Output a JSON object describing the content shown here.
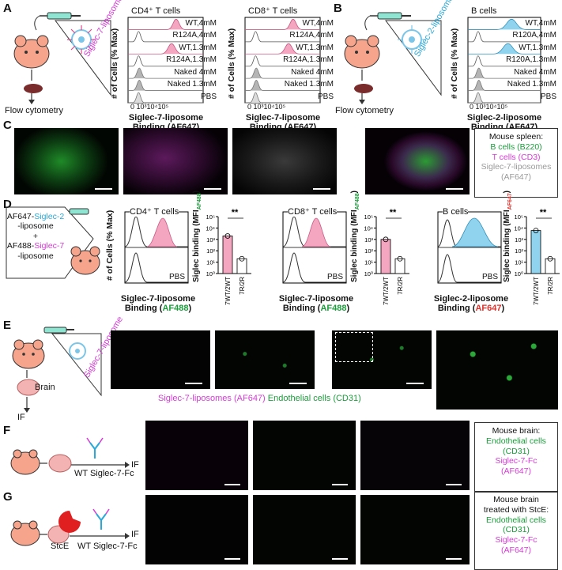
{
  "panels": {
    "A": {
      "letter": "A",
      "liposome_label": "Siglec-7-liposome",
      "arrow_label": "Flow cytometry",
      "plots": [
        {
          "title": "CD4⁺ T cells"
        },
        {
          "title": "CD8⁺ T cells"
        }
      ],
      "row_labels": [
        "WT,4mM",
        "R124A,4mM",
        "WT,1.3mM",
        "R124A,1.3mM",
        "Naked 4mM",
        "Naked 1.3mM",
        "PBS"
      ],
      "xaxis_ticks": [
        "0",
        "10³",
        "10⁴",
        "10⁵"
      ],
      "ylabel": "# of Cells (% Max)",
      "xlabel_line1": "Siglec-7-liposome",
      "xlabel_line2": "Binding (AF647)"
    },
    "B": {
      "letter": "B",
      "liposome_label": "Siglec-2-liposome",
      "arrow_label": "Flow cytometry",
      "plot_title": "B cells",
      "row_labels": [
        "WT,4mM",
        "R120A,4mM",
        "WT,1.3mM",
        "R120A,1.3mM",
        "Naked 4mM",
        "Naked 1.3mM",
        "PBS"
      ],
      "xaxis_ticks": [
        "0",
        "10³",
        "10⁴",
        "10⁵"
      ],
      "ylabel": "# of Cells (% Max)",
      "xlabel_line1": "Siglec-2-liposome",
      "xlabel_line2": "Binding (AF647)"
    },
    "C": {
      "letter": "C",
      "legend": [
        "Mouse spleen:",
        "B cells (B220)",
        "T cells (CD3)",
        "Siglec-7-liposomes",
        "(AF647)"
      ]
    },
    "D": {
      "letter": "D",
      "injection_lines": [
        "AF647-",
        "Siglec-2",
        "-liposome",
        "+",
        "AF488-",
        "Siglec-7",
        "-liposome"
      ],
      "hist1": {
        "title": "CD4⁺ T cells",
        "pbs": "PBS",
        "xlabel_line1": "Siglec-7-liposome",
        "xlabel_line2_prefix": "Binding (",
        "xlabel_line2_fluor": "AF488",
        "xlabel_line2_suffix": ")"
      },
      "hist2": {
        "title": "CD8⁺ T cells",
        "pbs": "PBS",
        "xlabel_line1": "Siglec-7-liposome",
        "xlabel_line2_prefix": "Binding (",
        "xlabel_line2_fluor": "AF488",
        "xlabel_line2_suffix": ")"
      },
      "hist3": {
        "title": "B cells",
        "pbs": "PBS",
        "xlabel_line1": "Siglec-2-liposome",
        "xlabel_line2_prefix": "Binding (",
        "xlabel_line2_fluor": "AF647",
        "xlabel_line2_suffix": ")"
      },
      "hist_ylabel": "# of Cells (% Max)",
      "bar_ylabel": "Siglec binding (MFI",
      "bar1_sub": "AF488",
      "bar3_sub": "AF647",
      "bar_categories": [
        "7WT/2WT",
        "7R/2R"
      ],
      "significance": "**",
      "bar_ticks": [
        "10⁵",
        "10⁴",
        "10³",
        "10²",
        "10¹",
        "10⁰"
      ]
    },
    "E": {
      "letter": "E",
      "liposome_label": "Siglec-7-liposome",
      "organ_label": "Brain",
      "assay_label": "IF",
      "caption_magenta": "Siglec-7-liposomes (AF647)",
      "caption_green": "Endothelial cells (CD31)"
    },
    "F": {
      "letter": "F",
      "reagent_label": "WT Siglec-7-Fc",
      "assay_label": "IF",
      "legend": [
        "Mouse brain:",
        "Endothelial cells",
        "(CD31)",
        "Siglec-7-Fc",
        "(AF647)"
      ]
    },
    "G": {
      "letter": "G",
      "enzyme_label": "StcE",
      "reagent_label": "WT Siglec-7-Fc",
      "assay_label": "IF",
      "legend": [
        "Mouse brain",
        "treated with StcE:",
        "Endothelial cells",
        "(CD31)",
        "Siglec-7-Fc",
        "(AF647)"
      ]
    }
  },
  "colors": {
    "pink": "#f4a6c0",
    "blue": "#8fd3ee",
    "gray_fill": "#b5b5b5",
    "green": "#1a9e3a",
    "magenta": "#d63bd6",
    "cyan": "#2aa8d8",
    "red": "#e0312b",
    "mouse": "#f7a48c"
  },
  "chart_data": [
    {
      "type": "bar",
      "title": "CD4⁺ T cells",
      "categories": [
        "7WT/2WT",
        "7R/2R"
      ],
      "values": [
        2000,
        20
      ],
      "log_scale": true,
      "ylabel": "Siglec binding (MFI AF488)"
    },
    {
      "type": "bar",
      "title": "CD8⁺ T cells",
      "categories": [
        "7WT/2WT",
        "7R/2R"
      ],
      "values": [
        1000,
        20
      ],
      "log_scale": true,
      "ylabel": "Siglec binding (MFI AF488)"
    },
    {
      "type": "bar",
      "title": "B cells",
      "categories": [
        "7WT/2WT",
        "7R/2R"
      ],
      "values": [
        6000,
        20
      ],
      "log_scale": true,
      "ylabel": "Siglec binding (MFI AF647)"
    }
  ]
}
